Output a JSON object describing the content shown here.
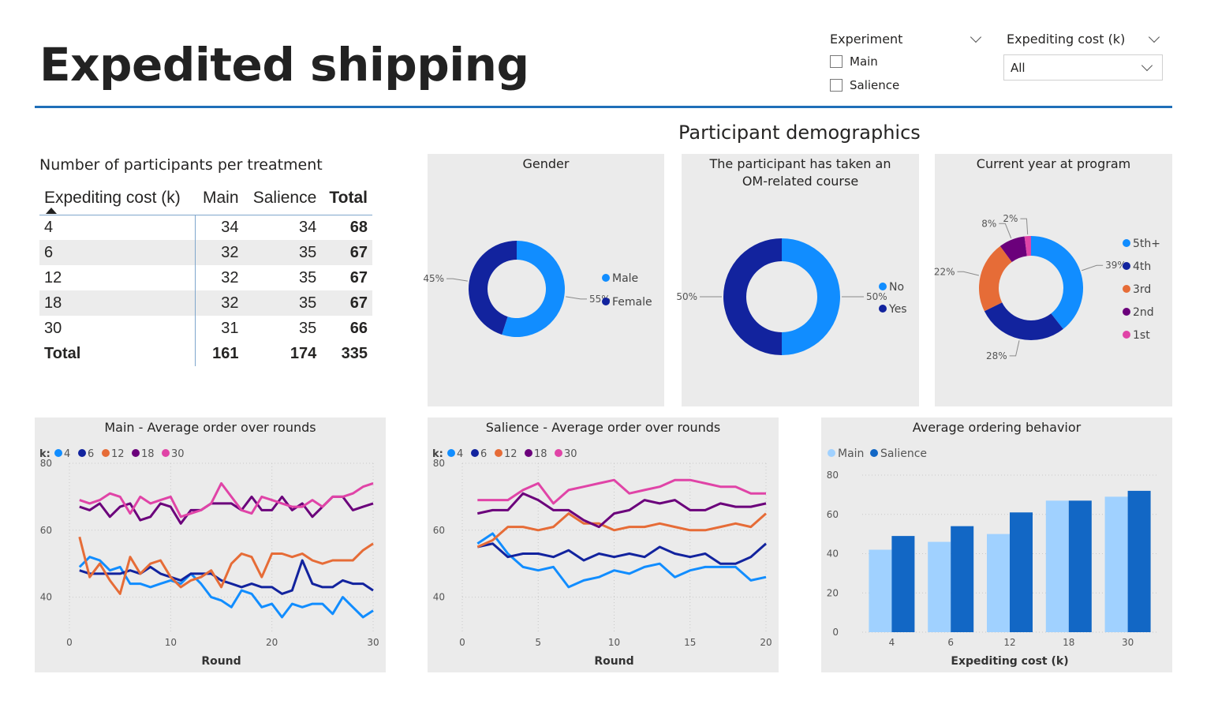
{
  "header": {
    "title": "Expedited shipping"
  },
  "slicers": {
    "experiment": {
      "label": "Experiment",
      "options": [
        "Main",
        "Salience"
      ]
    },
    "expediting_cost": {
      "label": "Expediting cost (k)",
      "selected": "All"
    }
  },
  "demographics_title": "Participant demographics",
  "participants_table": {
    "title": "Number of participants per treatment",
    "headers": [
      "Expediting cost (k)",
      "Main",
      "Salience",
      "Total"
    ],
    "rows": [
      [
        "4",
        "34",
        "34",
        "68"
      ],
      [
        "6",
        "32",
        "35",
        "67"
      ],
      [
        "12",
        "32",
        "35",
        "67"
      ],
      [
        "18",
        "32",
        "35",
        "67"
      ],
      [
        "30",
        "31",
        "35",
        "66"
      ]
    ],
    "total_row": [
      "Total",
      "161",
      "174",
      "335"
    ]
  },
  "colors": {
    "k4": "#118dff",
    "k6": "#12239e",
    "k12": "#e66c37",
    "k18": "#6b007b",
    "k30": "#e044a7",
    "main_bar": "#a0d1ff",
    "salience_bar": "#1267c5"
  },
  "chart_data": [
    {
      "id": "gender",
      "type": "pie",
      "title": "Gender",
      "labels": [
        "Male",
        "Female"
      ],
      "values": [
        55,
        45
      ],
      "data_labels": [
        "55%",
        "45%"
      ],
      "colors": [
        "#118dff",
        "#12239e"
      ],
      "legend": "right"
    },
    {
      "id": "om_course",
      "type": "pie",
      "title": "The participant has taken an OM-related course",
      "title_lines": [
        "The participant has taken an",
        "OM-related course"
      ],
      "labels": [
        "No",
        "Yes"
      ],
      "values": [
        50,
        50
      ],
      "data_labels": [
        "50%",
        "50%"
      ],
      "colors": [
        "#118dff",
        "#12239e"
      ],
      "legend": "right"
    },
    {
      "id": "year",
      "type": "pie",
      "title": "Current year at program",
      "labels": [
        "5th+",
        "4th",
        "3rd",
        "2nd",
        "1st"
      ],
      "values": [
        39,
        28,
        22,
        8,
        2
      ],
      "data_labels": [
        "39%",
        "28%",
        "22%",
        "8%",
        "2%"
      ],
      "colors": [
        "#118dff",
        "#12239e",
        "#e66c37",
        "#6b007b",
        "#e044a7"
      ],
      "legend": "right"
    },
    {
      "id": "main_rounds",
      "type": "line",
      "title": "Main - Average order over rounds",
      "xlabel": "Round",
      "ylabel": "",
      "legend_title": "k:",
      "xlim": [
        0,
        30
      ],
      "ylim": [
        30,
        80
      ],
      "xticks": [
        0,
        10,
        20,
        30
      ],
      "yticks": [
        40,
        60,
        80
      ],
      "x": [
        1,
        2,
        3,
        4,
        5,
        6,
        7,
        8,
        9,
        10,
        11,
        12,
        13,
        14,
        15,
        16,
        17,
        18,
        19,
        20,
        21,
        22,
        23,
        24,
        25,
        26,
        27,
        28,
        29,
        30
      ],
      "series": [
        {
          "name": "4",
          "color": "#118dff",
          "values": [
            49,
            52,
            51,
            48,
            49,
            44,
            44,
            43,
            44,
            45,
            44,
            47,
            44,
            40,
            39,
            37,
            42,
            41,
            37,
            38,
            34,
            38,
            37,
            38,
            38,
            35,
            40,
            37,
            34,
            36
          ]
        },
        {
          "name": "6",
          "color": "#12239e",
          "values": [
            48,
            47,
            47,
            47,
            47,
            48,
            47,
            49,
            47,
            46,
            45,
            47,
            47,
            47,
            45,
            44,
            43,
            44,
            43,
            43,
            41,
            42,
            51,
            44,
            43,
            43,
            45,
            44,
            44,
            42
          ]
        },
        {
          "name": "12",
          "color": "#e66c37",
          "values": [
            58,
            46,
            50,
            45,
            41,
            52,
            47,
            50,
            51,
            46,
            43,
            45,
            46,
            48,
            43,
            50,
            53,
            52,
            46,
            53,
            53,
            52,
            53,
            51,
            50,
            51,
            51,
            51,
            54,
            56
          ]
        },
        {
          "name": "18",
          "color": "#6b007b",
          "values": [
            67,
            66,
            68,
            64,
            67,
            68,
            63,
            64,
            68,
            67,
            62,
            66,
            66,
            68,
            68,
            68,
            66,
            70,
            66,
            66,
            70,
            66,
            68,
            64,
            67,
            70,
            70,
            66,
            67,
            68
          ]
        },
        {
          "name": "30",
          "color": "#e044a7",
          "values": [
            69,
            68,
            69,
            71,
            70,
            65,
            70,
            68,
            69,
            70,
            64,
            65,
            66,
            68,
            74,
            70,
            66,
            65,
            70,
            69,
            68,
            67,
            67,
            69,
            67,
            70,
            70,
            71,
            73,
            74
          ]
        }
      ]
    },
    {
      "id": "salience_rounds",
      "type": "line",
      "title": "Salience - Average order over rounds",
      "xlabel": "Round",
      "ylabel": "",
      "legend_title": "k:",
      "xlim": [
        0,
        20
      ],
      "ylim": [
        30,
        80
      ],
      "xticks": [
        0,
        5,
        10,
        15,
        20
      ],
      "yticks": [
        40,
        60,
        80
      ],
      "x": [
        1,
        2,
        3,
        4,
        5,
        6,
        7,
        8,
        9,
        10,
        11,
        12,
        13,
        14,
        15,
        16,
        17,
        18,
        19,
        20
      ],
      "series": [
        {
          "name": "4",
          "color": "#118dff",
          "values": [
            56,
            59,
            53,
            49,
            48,
            49,
            43,
            45,
            46,
            48,
            47,
            49,
            50,
            46,
            48,
            49,
            49,
            49,
            45,
            46
          ]
        },
        {
          "name": "6",
          "color": "#12239e",
          "values": [
            55,
            56,
            52,
            53,
            53,
            52,
            54,
            51,
            53,
            52,
            53,
            52,
            55,
            53,
            52,
            53,
            50,
            50,
            52,
            56
          ]
        },
        {
          "name": "12",
          "color": "#e66c37",
          "values": [
            55,
            57,
            61,
            61,
            60,
            61,
            65,
            62,
            62,
            60,
            61,
            61,
            62,
            61,
            60,
            60,
            61,
            62,
            61,
            65
          ]
        },
        {
          "name": "18",
          "color": "#6b007b",
          "values": [
            65,
            66,
            66,
            71,
            69,
            66,
            66,
            63,
            61,
            65,
            66,
            69,
            68,
            69,
            66,
            66,
            68,
            67,
            67,
            68
          ]
        },
        {
          "name": "30",
          "color": "#e044a7",
          "values": [
            69,
            69,
            69,
            72,
            74,
            68,
            72,
            73,
            74,
            75,
            71,
            72,
            73,
            75,
            75,
            74,
            73,
            73,
            71,
            71
          ]
        }
      ]
    },
    {
      "id": "avg_ordering",
      "type": "bar",
      "title": "Average ordering behavior",
      "xlabel": "Expediting cost (k)",
      "ylabel": "",
      "categories": [
        "4",
        "6",
        "12",
        "18",
        "30"
      ],
      "ylim": [
        0,
        80
      ],
      "yticks": [
        0,
        20,
        40,
        60,
        80
      ],
      "series": [
        {
          "name": "Main",
          "color": "#a0d1ff",
          "values": [
            42,
            46,
            50,
            67,
            69
          ]
        },
        {
          "name": "Salience",
          "color": "#1267c5",
          "values": [
            49,
            54,
            61,
            67,
            72
          ]
        }
      ]
    }
  ]
}
